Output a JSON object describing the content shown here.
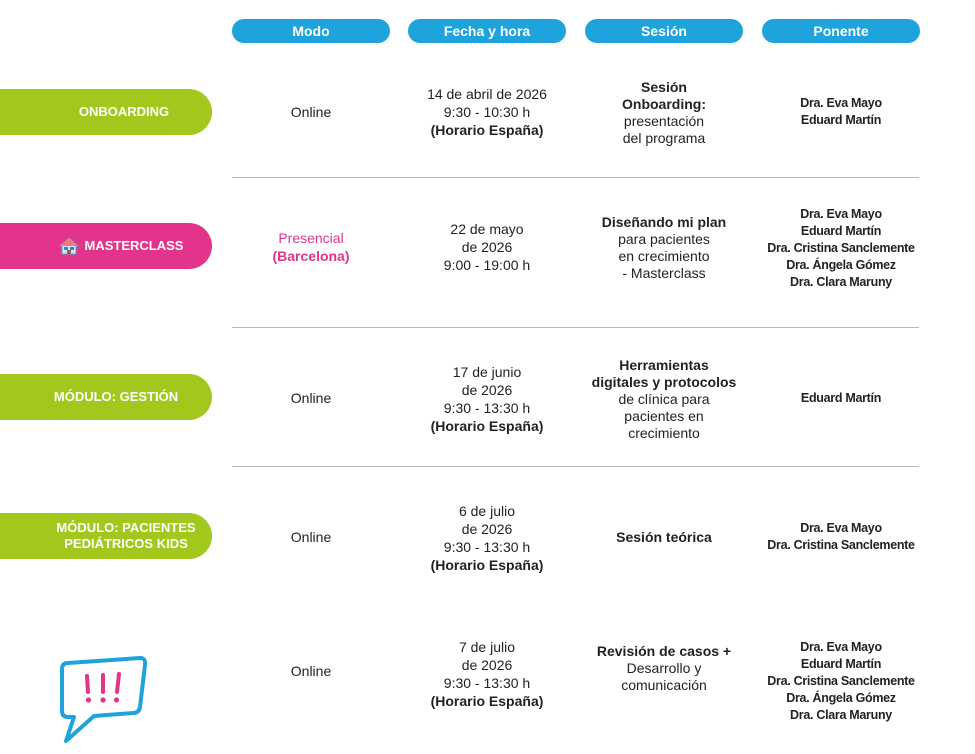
{
  "headers": {
    "modo": "Modo",
    "fecha": "Fecha y hora",
    "sesion": "Sesión",
    "ponente": "Ponente"
  },
  "rows": [
    {
      "label": "ONBOARDING",
      "modo": "Online",
      "fecha_l1": "14 de abril de 2026",
      "fecha_l2": "9:30 - 10:30 h",
      "fecha_l3": "(Horario España)",
      "sesion_bold_l1": "Sesión",
      "sesion_bold_l2": "Onboarding:",
      "sesion_l3": "presentación",
      "sesion_l4": "del programa",
      "ponentes": [
        "Dra. Eva Mayo",
        "Eduard Martín"
      ]
    },
    {
      "label": "MASTERCLASS",
      "modo_l1": "Presencial",
      "modo_l2": "(Barcelona)",
      "fecha_l1": "22 de mayo",
      "fecha_l2": "de 2026",
      "fecha_l3": "9:00 - 19:00 h",
      "sesion_bold_l1": "Diseñando mi plan",
      "sesion_l2": "para pacientes",
      "sesion_l3": "en crecimiento",
      "sesion_l4": "- Masterclass",
      "ponentes": [
        "Dra. Eva Mayo",
        "Eduard Martín",
        "Dra. Cristina Sanclemente",
        "Dra. Ángela Gómez",
        "Dra. Clara Maruny"
      ]
    },
    {
      "label": "MÓDULO: GESTIÓN",
      "modo": "Online",
      "fecha_l1": "17 de junio",
      "fecha_l2": "de 2026",
      "fecha_l3": "9:30 - 13:30 h",
      "fecha_l4": "(Horario España)",
      "sesion_bold_l1": "Herramientas",
      "sesion_bold_l2": "digitales y protocolos",
      "sesion_l3": "de clínica para",
      "sesion_l4": "pacientes en",
      "sesion_l5": "crecimiento",
      "ponentes": [
        "Eduard Martín"
      ]
    },
    {
      "label_l1": "MÓDULO: PACIENTES",
      "label_l2": "PEDIÁTRICOS KIDS",
      "modo": "Online",
      "fecha_l1": "6 de julio",
      "fecha_l2": "de 2026",
      "fecha_l3": "9:30 - 13:30 h",
      "fecha_l4": "(Horario España)",
      "sesion_bold_l1": "Sesión teórica",
      "ponentes": [
        "Dra. Eva Mayo",
        "Dra. Cristina Sanclemente"
      ]
    },
    {
      "modo": "Online",
      "fecha_l1": "7 de julio",
      "fecha_l2": "de 2026",
      "fecha_l3": "9:30 - 13:30 h",
      "fecha_l4": "(Horario España)",
      "sesion_bold_l1": "Revisión de casos +",
      "sesion_l2": "Desarrollo y",
      "sesion_l3": "comunicación",
      "ponentes": [
        "Dra. Eva Mayo",
        "Eduard Martín",
        "Dra. Cristina Sanclemente",
        "Dra. Ángela Gómez",
        "Dra. Clara Maruny"
      ]
    }
  ],
  "icons": {
    "masterclass": "house-icon",
    "last_row": "speech-bubble-alert-icon"
  },
  "colors": {
    "blue": "#1fa3dc",
    "green": "#a2c81d",
    "pink": "#e2348a"
  }
}
